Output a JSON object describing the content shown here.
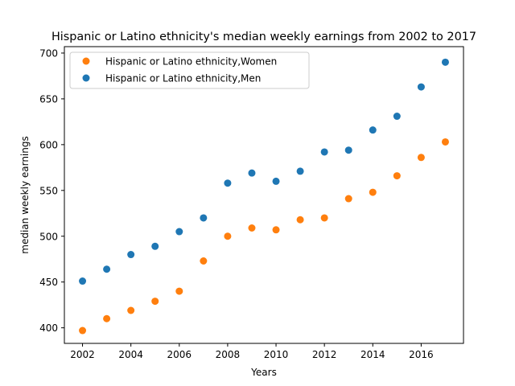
{
  "chart_data": {
    "type": "scatter",
    "title": "Hispanic or Latino ethnicity's median weekly earnings from 2002 to 2017",
    "xlabel": "Years",
    "ylabel": "median weekly earnings",
    "xlim": [
      2001.25,
      2017.75
    ],
    "ylim": [
      383,
      707
    ],
    "x_ticks": [
      2002,
      2004,
      2006,
      2008,
      2010,
      2012,
      2014,
      2016
    ],
    "y_ticks": [
      400,
      450,
      500,
      550,
      600,
      650,
      700
    ],
    "grid": false,
    "legend_position": "top-left",
    "x": [
      2002,
      2003,
      2004,
      2005,
      2006,
      2007,
      2008,
      2009,
      2010,
      2011,
      2012,
      2013,
      2014,
      2015,
      2016,
      2017
    ],
    "series": [
      {
        "name": "Hispanic or Latino ethnicity,Women",
        "color": "#ff7f0e",
        "values": [
          397,
          410,
          419,
          429,
          440,
          473,
          500,
          509,
          507,
          518,
          520,
          541,
          548,
          566,
          586,
          603
        ]
      },
      {
        "name": "Hispanic or Latino ethnicity,Men",
        "color": "#1f77b4",
        "values": [
          451,
          464,
          480,
          489,
          505,
          520,
          558,
          569,
          560,
          571,
          592,
          594,
          616,
          631,
          663,
          690
        ]
      }
    ]
  }
}
